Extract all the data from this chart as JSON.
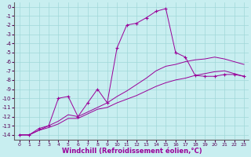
{
  "background_color": "#c8eef0",
  "grid_color": "#a0d8d8",
  "line_color": "#990099",
  "xlabel": "Windchill (Refroidissement éolien,°C)",
  "xlabel_fontsize": 6.0,
  "xlim": [
    -0.5,
    23.5
  ],
  "ylim": [
    -14.5,
    0.5
  ],
  "xticks": [
    0,
    1,
    2,
    3,
    4,
    5,
    6,
    7,
    8,
    9,
    10,
    11,
    12,
    13,
    14,
    15,
    16,
    17,
    18,
    19,
    20,
    21,
    22,
    23
  ],
  "yticks": [
    0,
    -1,
    -2,
    -3,
    -4,
    -5,
    -6,
    -7,
    -8,
    -9,
    -10,
    -11,
    -12,
    -13,
    -14
  ],
  "series1_x": [
    0,
    1,
    2,
    3,
    4,
    5,
    6,
    7,
    8,
    9,
    10,
    11,
    12,
    13,
    14,
    15,
    16,
    17,
    18,
    19,
    20,
    21,
    22,
    23
  ],
  "series1_y": [
    -14,
    -14,
    -13.5,
    -13.2,
    -12.8,
    -12.2,
    -12.2,
    -11.7,
    -11.2,
    -11.0,
    -10.5,
    -10.1,
    -9.7,
    -9.2,
    -8.7,
    -8.3,
    -8.0,
    -7.8,
    -7.5,
    -7.3,
    -7.1,
    -7.0,
    -7.3,
    -7.6
  ],
  "series2_x": [
    0,
    1,
    2,
    3,
    4,
    5,
    6,
    7,
    8,
    9,
    10,
    11,
    12,
    13,
    14,
    15,
    16,
    17,
    18,
    19,
    20,
    21,
    22,
    23
  ],
  "series2_y": [
    -14,
    -14,
    -13.5,
    -13.0,
    -12.5,
    -11.8,
    -12.0,
    -11.5,
    -11.0,
    -10.5,
    -9.8,
    -9.2,
    -8.5,
    -7.8,
    -7.0,
    -6.5,
    -6.3,
    -6.0,
    -5.8,
    -5.7,
    -5.5,
    -5.7,
    -6.0,
    -6.3
  ],
  "series3_x": [
    0,
    1,
    2,
    3,
    4,
    5,
    6,
    7,
    8,
    9,
    10,
    11,
    12,
    13,
    14,
    15,
    16,
    17,
    18,
    19,
    20,
    21,
    22,
    23
  ],
  "series3_y": [
    -14,
    -14,
    -13.3,
    -13.0,
    -10.0,
    -9.8,
    -12.0,
    -10.5,
    -9.0,
    -10.5,
    -4.5,
    -2.0,
    -1.8,
    -1.2,
    -0.5,
    -0.2,
    -5.0,
    -5.5,
    -7.5,
    -7.6,
    -7.6,
    -7.4,
    -7.4,
    -7.6
  ]
}
